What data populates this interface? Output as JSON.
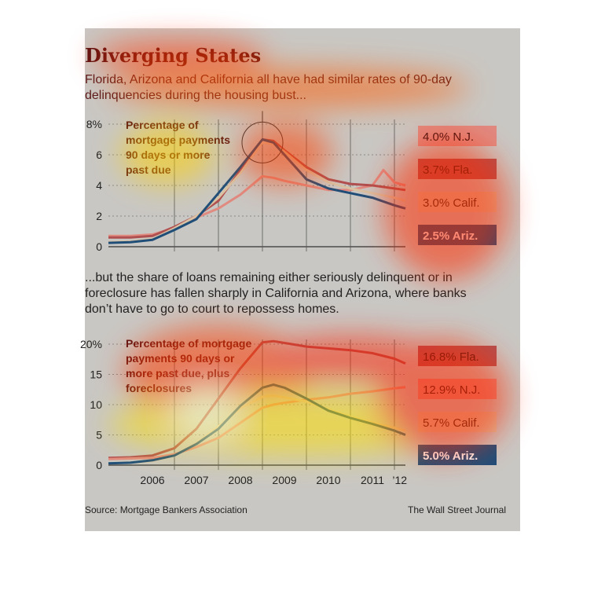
{
  "title": "Diverging States",
  "subtitle_top": "Florida, Arizona and California all have had similar rates of 90-day delinquencies during the housing bust...",
  "subtitle_bottom": "...but the share of loans remaining either seriously delinquent or in foreclosure has fallen sharply in California and Arizona, where banks don’t have to go to court to repossess homes.",
  "source": "Source: Mortgage Bankers Association",
  "credit": "The Wall Street Journal",
  "colors": {
    "nj": "#e08a80",
    "fla": "#b05050",
    "calif": "#d9c2a3",
    "ariz": "#1f4e79",
    "text_calif": "#5a3e20",
    "text_dark": "#5a1212"
  },
  "chart_data": [
    {
      "type": "line",
      "annotation": "Percentage of mortgage payments 90 days or more past due",
      "ylim": [
        0,
        8
      ],
      "yticks": [
        "0",
        "2",
        "4",
        "6",
        "8%"
      ],
      "ytick_values": [
        0,
        2,
        4,
        6,
        8
      ],
      "xlim": [
        2005.5,
        2012.25
      ],
      "highlight_circle_x": 2009.0,
      "highlight_circle_y": 6.8,
      "series": [
        {
          "name": "N.J.",
          "label": "4.0% N.J.",
          "color": "#e08a80",
          "x": [
            2005.5,
            2006.0,
            2006.5,
            2007.0,
            2007.5,
            2008.0,
            2008.5,
            2009.0,
            2009.25,
            2009.5,
            2010.0,
            2010.5,
            2011.0,
            2011.5,
            2011.75,
            2012.0,
            2012.25
          ],
          "y": [
            0.7,
            0.7,
            0.8,
            1.2,
            1.9,
            2.5,
            3.4,
            4.6,
            4.5,
            4.3,
            4.0,
            3.7,
            3.7,
            4.0,
            5.0,
            4.2,
            4.0
          ]
        },
        {
          "name": "Fla.",
          "label": "3.7% Fla.",
          "color": "#b05050",
          "x": [
            2005.5,
            2006.0,
            2006.5,
            2007.0,
            2007.5,
            2008.0,
            2008.5,
            2009.0,
            2009.25,
            2009.5,
            2010.0,
            2010.5,
            2011.0,
            2011.5,
            2012.0,
            2012.25
          ],
          "y": [
            0.6,
            0.6,
            0.7,
            1.3,
            2.0,
            3.0,
            5.0,
            7.0,
            6.9,
            6.3,
            5.2,
            4.4,
            4.1,
            4.0,
            3.8,
            3.7
          ]
        },
        {
          "name": "Calif.",
          "label": "3.0% Calif.",
          "color": "#d9c2a3",
          "x": [
            2005.5,
            2006.0,
            2006.5,
            2007.0,
            2007.5,
            2008.0,
            2008.5,
            2009.0,
            2009.25,
            2009.5,
            2010.0,
            2010.5,
            2011.0,
            2011.5,
            2012.0,
            2012.25
          ],
          "y": [
            0.3,
            0.35,
            0.5,
            1.2,
            2.0,
            3.2,
            4.8,
            6.8,
            6.7,
            6.2,
            5.0,
            4.2,
            3.8,
            3.5,
            3.2,
            3.0
          ]
        },
        {
          "name": "Ariz.",
          "label": "2.5% Ariz.",
          "color": "#1f4e79",
          "x": [
            2005.5,
            2006.0,
            2006.5,
            2007.0,
            2007.5,
            2008.0,
            2008.5,
            2009.0,
            2009.25,
            2009.5,
            2010.0,
            2010.5,
            2011.0,
            2011.5,
            2012.0,
            2012.25
          ],
          "y": [
            0.25,
            0.3,
            0.45,
            1.1,
            1.8,
            3.5,
            5.2,
            7.0,
            6.8,
            6.0,
            4.4,
            3.8,
            3.5,
            3.2,
            2.7,
            2.5
          ]
        }
      ]
    },
    {
      "type": "line",
      "annotation": "Percentage of mortgage payments 90 days or more past due, plus foreclosures",
      "ylim": [
        0,
        20
      ],
      "yticks": [
        "0",
        "5",
        "10",
        "15",
        "20%"
      ],
      "ytick_values": [
        0,
        5,
        10,
        15,
        20
      ],
      "xlim": [
        2005.5,
        2012.25
      ],
      "xticks": [
        "2006",
        "2007",
        "2008",
        "2009",
        "2010",
        "2011",
        "’12"
      ],
      "xtick_values": [
        2006,
        2007,
        2008,
        2009,
        2010,
        2011,
        2012
      ],
      "series": [
        {
          "name": "Fla.",
          "label": "16.8% Fla.",
          "color": "#b05050",
          "x": [
            2005.5,
            2006.0,
            2006.5,
            2007.0,
            2007.5,
            2008.0,
            2008.5,
            2009.0,
            2009.25,
            2009.5,
            2010.0,
            2010.5,
            2011.0,
            2011.5,
            2012.0,
            2012.25
          ],
          "y": [
            1.2,
            1.3,
            1.6,
            2.8,
            6.0,
            11.0,
            16.0,
            20.3,
            20.5,
            20.2,
            19.6,
            19.3,
            19.0,
            18.5,
            17.6,
            16.8
          ]
        },
        {
          "name": "N.J.",
          "label": "12.9% N.J.",
          "color": "#e08a80",
          "x": [
            2005.5,
            2006.0,
            2006.5,
            2007.0,
            2007.5,
            2008.0,
            2008.5,
            2009.0,
            2009.25,
            2009.5,
            2010.0,
            2010.5,
            2011.0,
            2011.5,
            2012.0,
            2012.25
          ],
          "y": [
            1.0,
            1.1,
            1.2,
            1.8,
            3.0,
            4.5,
            7.0,
            9.5,
            10.0,
            10.3,
            10.8,
            11.2,
            11.8,
            12.2,
            12.7,
            12.9
          ]
        },
        {
          "name": "Calif.",
          "label": "5.7% Calif.",
          "color": "#d9c2a3",
          "x": [
            2005.5,
            2006.0,
            2006.5,
            2007.0,
            2007.5,
            2008.0,
            2008.5,
            2009.0,
            2009.25,
            2009.5,
            2010.0,
            2010.5,
            2011.0,
            2011.5,
            2012.0,
            2012.25
          ],
          "y": [
            0.3,
            0.4,
            0.7,
            1.6,
            3.6,
            6.4,
            9.4,
            11.3,
            11.5,
            11.2,
            10.5,
            9.2,
            8.0,
            7.0,
            6.2,
            5.7
          ]
        },
        {
          "name": "Ariz.",
          "label": "5.0% Ariz.",
          "color": "#1f4e79",
          "x": [
            2005.5,
            2006.0,
            2006.5,
            2007.0,
            2007.5,
            2008.0,
            2008.5,
            2009.0,
            2009.25,
            2009.5,
            2010.0,
            2010.5,
            2011.0,
            2011.5,
            2012.0,
            2012.25
          ],
          "y": [
            0.3,
            0.4,
            0.8,
            1.6,
            3.5,
            6.0,
            9.8,
            12.8,
            13.3,
            12.8,
            11.0,
            9.0,
            7.8,
            6.8,
            5.7,
            5.0
          ]
        }
      ]
    }
  ]
}
